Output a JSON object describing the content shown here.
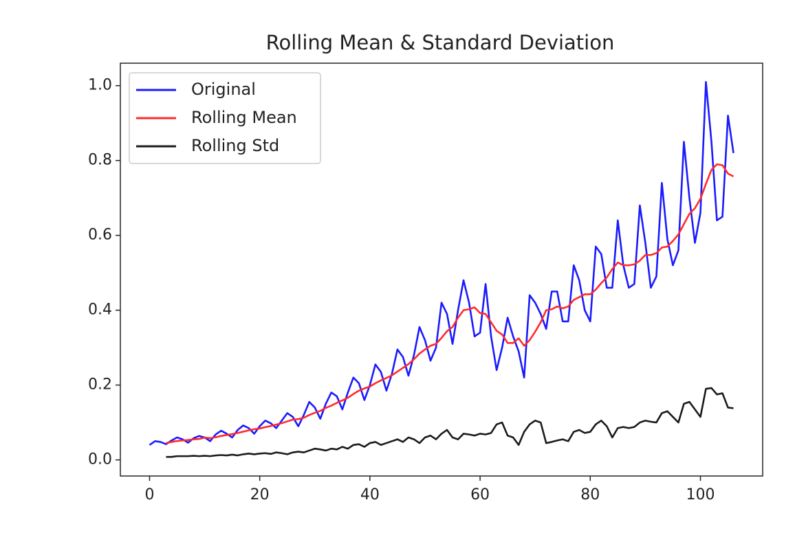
{
  "chart_data": {
    "type": "line",
    "title": "Rolling Mean & Standard Deviation",
    "x": [
      0,
      1,
      2,
      3,
      4,
      5,
      6,
      7,
      8,
      9,
      10,
      11,
      12,
      13,
      14,
      15,
      16,
      17,
      18,
      19,
      20,
      21,
      22,
      23,
      24,
      25,
      26,
      27,
      28,
      29,
      30,
      31,
      32,
      33,
      34,
      35,
      36,
      37,
      38,
      39,
      40,
      41,
      42,
      43,
      44,
      45,
      46,
      47,
      48,
      49,
      50,
      51,
      52,
      53,
      54,
      55,
      56,
      57,
      58,
      59,
      60,
      61,
      62,
      63,
      64,
      65,
      66,
      67,
      68,
      69,
      70,
      71,
      72,
      73,
      74,
      75,
      76,
      77,
      78,
      79,
      80,
      81,
      82,
      83,
      84,
      85,
      86,
      87,
      88,
      89,
      90,
      91,
      92,
      93,
      94,
      95,
      96,
      97,
      98,
      99,
      100,
      101,
      102,
      103,
      104,
      105,
      106
    ],
    "series": [
      {
        "name": "Original",
        "color": "#1a1aff",
        "values": [
          0.04,
          0.05,
          0.048,
          0.042,
          0.052,
          0.06,
          0.055,
          0.046,
          0.058,
          0.064,
          0.06,
          0.05,
          0.068,
          0.078,
          0.07,
          0.06,
          0.08,
          0.092,
          0.085,
          0.07,
          0.09,
          0.105,
          0.098,
          0.085,
          0.105,
          0.125,
          0.115,
          0.09,
          0.12,
          0.155,
          0.14,
          0.11,
          0.15,
          0.18,
          0.17,
          0.135,
          0.18,
          0.22,
          0.205,
          0.16,
          0.2,
          0.255,
          0.235,
          0.185,
          0.23,
          0.295,
          0.275,
          0.225,
          0.28,
          0.355,
          0.32,
          0.265,
          0.3,
          0.42,
          0.39,
          0.31,
          0.4,
          0.48,
          0.42,
          0.33,
          0.34,
          0.47,
          0.33,
          0.24,
          0.3,
          0.38,
          0.33,
          0.29,
          0.22,
          0.44,
          0.42,
          0.39,
          0.35,
          0.45,
          0.45,
          0.37,
          0.37,
          0.52,
          0.48,
          0.4,
          0.37,
          0.57,
          0.55,
          0.46,
          0.46,
          0.64,
          0.52,
          0.46,
          0.47,
          0.68,
          0.58,
          0.46,
          0.49,
          0.74,
          0.59,
          0.52,
          0.56,
          0.85,
          0.7,
          0.58,
          0.66,
          1.01,
          0.85,
          0.64,
          0.65,
          0.92,
          0.82
        ]
      },
      {
        "name": "Rolling Mean",
        "color": "#ff2a2a",
        "values": [
          null,
          null,
          null,
          0.045,
          0.048,
          0.0505,
          0.052,
          0.053,
          0.055,
          0.056,
          0.0595,
          0.058,
          0.0605,
          0.064,
          0.0665,
          0.069,
          0.072,
          0.0755,
          0.079,
          0.082,
          0.084,
          0.0875,
          0.0905,
          0.0945,
          0.098,
          0.103,
          0.1075,
          0.109,
          0.1125,
          0.12,
          0.126,
          0.131,
          0.139,
          0.145,
          0.1525,
          0.159,
          0.166,
          0.176,
          0.185,
          0.191,
          0.196,
          0.205,
          0.2125,
          0.219,
          0.226,
          0.236,
          0.246,
          0.256,
          0.269,
          0.284,
          0.295,
          0.305,
          0.31,
          0.326,
          0.344,
          0.355,
          0.38,
          0.4,
          0.4025,
          0.4075,
          0.3925,
          0.39,
          0.3675,
          0.345,
          0.335,
          0.3125,
          0.3125,
          0.325,
          0.305,
          0.32,
          0.3425,
          0.3675,
          0.4,
          0.4025,
          0.41,
          0.405,
          0.41,
          0.4275,
          0.435,
          0.4425,
          0.4425,
          0.455,
          0.4725,
          0.4875,
          0.51,
          0.5275,
          0.52,
          0.52,
          0.5225,
          0.5325,
          0.5475,
          0.5475,
          0.5525,
          0.5675,
          0.57,
          0.585,
          0.6025,
          0.63,
          0.6575,
          0.6725,
          0.6975,
          0.7375,
          0.775,
          0.79,
          0.7875,
          0.765,
          0.7575
        ]
      },
      {
        "name": "Rolling Std",
        "color": "#1a1a1a",
        "values": [
          null,
          null,
          null,
          0.008,
          0.008,
          0.01,
          0.01,
          0.01,
          0.011,
          0.01,
          0.011,
          0.01,
          0.012,
          0.013,
          0.012,
          0.014,
          0.012,
          0.015,
          0.017,
          0.015,
          0.017,
          0.018,
          0.016,
          0.02,
          0.018,
          0.015,
          0.02,
          0.022,
          0.02,
          0.025,
          0.03,
          0.028,
          0.025,
          0.03,
          0.028,
          0.035,
          0.03,
          0.04,
          0.042,
          0.035,
          0.045,
          0.048,
          0.04,
          0.045,
          0.05,
          0.055,
          0.048,
          0.06,
          0.055,
          0.045,
          0.06,
          0.065,
          0.055,
          0.07,
          0.08,
          0.06,
          0.055,
          0.07,
          0.068,
          0.065,
          0.07,
          0.068,
          0.072,
          0.095,
          0.1,
          0.065,
          0.06,
          0.04,
          0.075,
          0.095,
          0.105,
          0.1,
          0.045,
          0.048,
          0.052,
          0.055,
          0.05,
          0.075,
          0.08,
          0.072,
          0.075,
          0.095,
          0.105,
          0.09,
          0.06,
          0.085,
          0.088,
          0.085,
          0.088,
          0.1,
          0.105,
          0.102,
          0.1,
          0.125,
          0.13,
          0.115,
          0.1,
          0.15,
          0.155,
          0.135,
          0.115,
          0.19,
          0.192,
          0.175,
          0.178,
          0.14,
          0.138
        ]
      }
    ],
    "xlim": [
      -5.3,
      111.3
    ],
    "ylim": [
      -0.043,
      1.06
    ],
    "xticks": [
      0,
      20,
      40,
      60,
      80,
      100
    ],
    "yticks": [
      {
        "value": 0,
        "label": "0.0"
      },
      0.2,
      0.4,
      0.6,
      0.8,
      {
        "value": 1,
        "label": "1.0"
      }
    ],
    "legend": "upper left",
    "grid": false
  }
}
